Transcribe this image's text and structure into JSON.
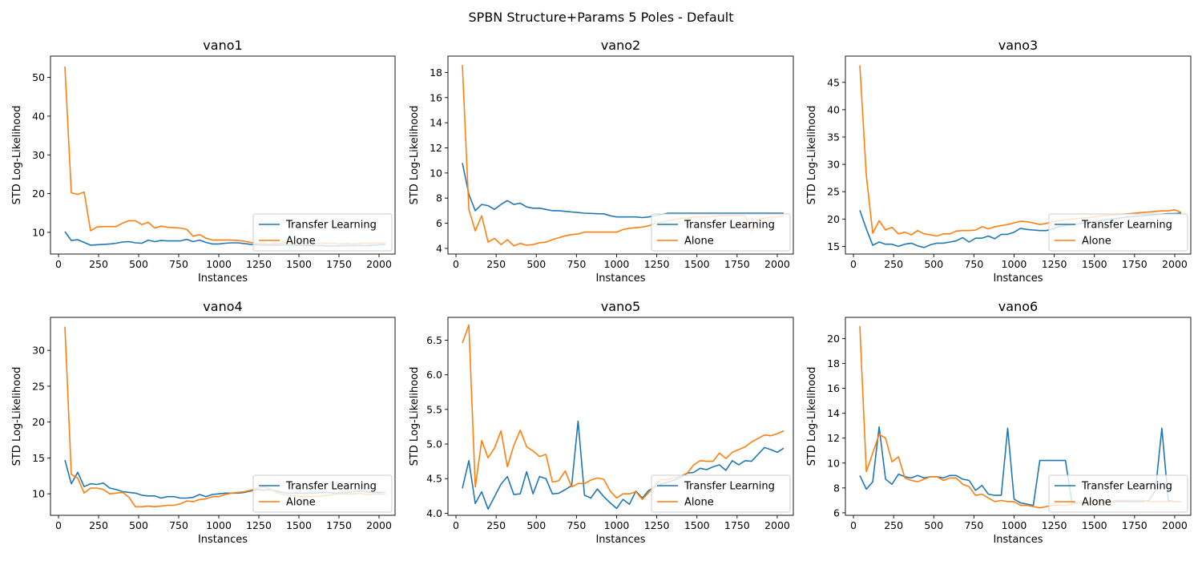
{
  "suptitle": "SPBN Structure+Params 5 Poles - Default",
  "colors": {
    "transfer": "#1f77b4",
    "alone": "#ff7f0e"
  },
  "chart_data": [
    {
      "type": "line",
      "title": "vano1",
      "xlabel": "Instances",
      "ylabel": "STD Log-Likelihood",
      "xlim": [
        -50,
        2100
      ],
      "ylim": [
        4.4,
        55.5
      ],
      "xticks": [
        0,
        250,
        500,
        750,
        1000,
        1250,
        1500,
        1750,
        2000
      ],
      "yticks": [
        10,
        20,
        30,
        40,
        50
      ],
      "legend_position": "lower-right",
      "x": [
        40,
        80,
        120,
        160,
        200,
        240,
        280,
        320,
        360,
        400,
        440,
        480,
        520,
        560,
        600,
        640,
        680,
        720,
        760,
        800,
        840,
        880,
        920,
        960,
        1000,
        1040,
        1080,
        1120,
        1160,
        1200,
        1240,
        1280,
        1320,
        1360,
        1400,
        1440,
        1480,
        1520,
        1560,
        1600,
        1640,
        1680,
        1720,
        1760,
        1800,
        1840,
        1880,
        1920,
        1960,
        2000,
        2040
      ],
      "series": [
        {
          "name": "Transfer Learning",
          "values": [
            10.2,
            7.9,
            8.1,
            7.4,
            6.7,
            6.8,
            6.9,
            7.0,
            7.2,
            7.5,
            7.6,
            7.3,
            7.2,
            8.0,
            7.6,
            7.9,
            7.8,
            7.8,
            7.8,
            8.2,
            7.6,
            8.0,
            7.4,
            7.0,
            7.0,
            7.2,
            7.3,
            7.3,
            7.1,
            6.9,
            6.8,
            6.7,
            6.7,
            6.7,
            6.8,
            6.7,
            6.7,
            6.6,
            6.6,
            6.6,
            6.6,
            6.5,
            6.5,
            6.5,
            6.6,
            6.6,
            6.6,
            6.6,
            6.7,
            6.8,
            6.9
          ]
        },
        {
          "name": "Alone",
          "values": [
            52.8,
            20.2,
            19.8,
            20.4,
            10.4,
            11.4,
            11.5,
            11.5,
            11.5,
            12.4,
            13.0,
            13.0,
            12.0,
            12.6,
            11.1,
            11.6,
            11.3,
            11.2,
            11.1,
            10.8,
            9.0,
            9.4,
            8.5,
            8.0,
            8.0,
            8.0,
            8.0,
            7.9,
            7.7,
            7.4,
            7.2,
            7.1,
            7.0,
            7.1,
            7.3,
            7.2,
            7.1,
            7.0,
            7.0,
            7.1,
            7.2,
            7.1,
            7.1,
            7.0,
            7.1,
            7.0,
            7.1,
            7.2,
            7.2,
            7.3,
            7.2
          ]
        }
      ]
    },
    {
      "type": "line",
      "title": "vano2",
      "xlabel": "Instances",
      "ylabel": "STD Log-Likelihood",
      "xlim": [
        -50,
        2100
      ],
      "ylim": [
        3.55,
        19.3
      ],
      "xticks": [
        0,
        250,
        500,
        750,
        1000,
        1250,
        1500,
        1750,
        2000
      ],
      "yticks": [
        4,
        6,
        8,
        10,
        12,
        14,
        16,
        18
      ],
      "legend_position": "lower-right",
      "x": [
        40,
        80,
        120,
        160,
        200,
        240,
        280,
        320,
        360,
        400,
        440,
        480,
        520,
        560,
        600,
        640,
        680,
        720,
        760,
        800,
        840,
        880,
        920,
        960,
        1000,
        1040,
        1080,
        1120,
        1160,
        1200,
        1240,
        1280,
        1320,
        1360,
        1400,
        1440,
        1480,
        1520,
        1560,
        1600,
        1640,
        1680,
        1720,
        1760,
        1800,
        1840,
        1880,
        1920,
        1960,
        2000,
        2040
      ],
      "series": [
        {
          "name": "Transfer Learning",
          "values": [
            10.8,
            8.3,
            7.0,
            7.5,
            7.4,
            7.1,
            7.5,
            7.8,
            7.5,
            7.6,
            7.3,
            7.2,
            7.2,
            7.1,
            7.0,
            7.0,
            6.95,
            6.9,
            6.85,
            6.8,
            6.78,
            6.76,
            6.75,
            6.6,
            6.5,
            6.5,
            6.5,
            6.5,
            6.45,
            6.5,
            6.6,
            6.7,
            6.8,
            6.8,
            6.8,
            6.8,
            6.8,
            6.8,
            6.8,
            6.8,
            6.8,
            6.8,
            6.8,
            6.8,
            6.8,
            6.8,
            6.8,
            6.8,
            6.8,
            6.8,
            6.8
          ]
        },
        {
          "name": "Alone",
          "values": [
            18.6,
            7.1,
            5.4,
            6.6,
            4.5,
            4.8,
            4.3,
            4.7,
            4.2,
            4.4,
            4.25,
            4.3,
            4.45,
            4.5,
            4.7,
            4.85,
            5.0,
            5.1,
            5.15,
            5.3,
            5.3,
            5.3,
            5.3,
            5.3,
            5.3,
            5.5,
            5.6,
            5.65,
            5.7,
            5.8,
            6.0,
            6.1,
            6.2,
            6.3,
            6.4,
            6.4,
            6.5,
            6.5,
            6.5,
            6.55,
            6.6,
            6.6,
            6.6,
            6.6,
            6.6,
            5.4,
            6.3,
            6.4,
            6.5,
            6.5,
            6.6
          ]
        }
      ]
    },
    {
      "type": "line",
      "title": "vano3",
      "xlabel": "Instances",
      "ylabel": "STD Log-Likelihood",
      "xlim": [
        -50,
        2100
      ],
      "ylim": [
        13.6,
        49.8
      ],
      "xticks": [
        0,
        250,
        500,
        750,
        1000,
        1250,
        1500,
        1750,
        2000
      ],
      "yticks": [
        15,
        20,
        25,
        30,
        35,
        40,
        45
      ],
      "legend_position": "lower-right",
      "x": [
        40,
        80,
        120,
        160,
        200,
        240,
        280,
        320,
        360,
        400,
        440,
        480,
        520,
        560,
        600,
        640,
        680,
        720,
        760,
        800,
        840,
        880,
        920,
        960,
        1000,
        1040,
        1080,
        1120,
        1160,
        1200,
        1240,
        1280,
        1320,
        1360,
        1400,
        1440,
        1480,
        1520,
        1560,
        1600,
        1640,
        1680,
        1720,
        1760,
        1800,
        1840,
        1880,
        1920,
        1960,
        2000,
        2040
      ],
      "series": [
        {
          "name": "Transfer Learning",
          "values": [
            21.6,
            18.2,
            15.2,
            15.8,
            15.4,
            15.4,
            15.0,
            15.4,
            15.6,
            15.1,
            14.8,
            15.3,
            15.6,
            15.6,
            15.8,
            16.0,
            16.6,
            15.8,
            16.5,
            16.5,
            16.9,
            16.4,
            17.2,
            17.2,
            17.6,
            18.3,
            18.1,
            18.0,
            17.9,
            17.9,
            18.2,
            18.6,
            18.8,
            19.0,
            19.1,
            19.3,
            19.5,
            19.6,
            19.8,
            20.0,
            20.1,
            20.3,
            20.4,
            20.5,
            20.6,
            20.7,
            20.8,
            20.9,
            21.0,
            21.0,
            21.1
          ]
        },
        {
          "name": "Alone",
          "values": [
            48.1,
            28.0,
            17.4,
            19.7,
            18.0,
            18.5,
            17.3,
            17.6,
            17.1,
            17.9,
            17.3,
            17.1,
            16.9,
            17.3,
            17.3,
            17.8,
            17.9,
            17.9,
            18.0,
            18.6,
            18.2,
            18.6,
            18.8,
            19.0,
            19.3,
            19.6,
            19.5,
            19.3,
            19.0,
            19.2,
            19.5,
            19.7,
            19.9,
            20.0,
            20.1,
            20.2,
            20.3,
            20.5,
            20.6,
            20.7,
            20.8,
            20.9,
            21.0,
            21.1,
            21.2,
            21.3,
            21.4,
            21.5,
            21.5,
            21.7,
            21.2
          ]
        }
      ]
    },
    {
      "type": "line",
      "title": "vano4",
      "xlabel": "Instances",
      "ylabel": "STD Log-Likelihood",
      "xlim": [
        -50,
        2100
      ],
      "ylim": [
        7.0,
        34.6
      ],
      "xticks": [
        0,
        250,
        500,
        750,
        1000,
        1250,
        1500,
        1750,
        2000
      ],
      "yticks": [
        10,
        15,
        20,
        25,
        30
      ],
      "legend_position": "lower-right",
      "x": [
        40,
        80,
        120,
        160,
        200,
        240,
        280,
        320,
        360,
        400,
        440,
        480,
        520,
        560,
        600,
        640,
        680,
        720,
        760,
        800,
        840,
        880,
        920,
        960,
        1000,
        1040,
        1080,
        1120,
        1160,
        1200,
        1240,
        1280,
        1320,
        1360,
        1400,
        1440,
        1480,
        1520,
        1560,
        1600,
        1640,
        1680,
        1720,
        1760,
        1800,
        1840,
        1880,
        1920,
        1960,
        2000,
        2040
      ],
      "series": [
        {
          "name": "Transfer Learning",
          "values": [
            14.7,
            11.4,
            13.0,
            11.0,
            11.4,
            11.3,
            11.5,
            10.8,
            10.6,
            10.3,
            10.2,
            10.1,
            9.8,
            9.7,
            9.7,
            9.4,
            9.6,
            9.6,
            9.4,
            9.4,
            9.5,
            9.9,
            9.6,
            9.9,
            10.0,
            10.1,
            10.1,
            10.1,
            10.2,
            10.4,
            10.6,
            10.5,
            10.6,
            10.4,
            10.2,
            10.1,
            10.1,
            10.1,
            10.1,
            10.1,
            10.2,
            10.2,
            10.1,
            10.1,
            10.2,
            10.3,
            10.4,
            10.3,
            10.2,
            10.2,
            10.2
          ]
        },
        {
          "name": "Alone",
          "values": [
            33.3,
            12.7,
            12.2,
            10.1,
            10.8,
            10.8,
            10.6,
            10.0,
            10.1,
            10.2,
            9.5,
            8.2,
            8.2,
            8.3,
            8.2,
            8.3,
            8.4,
            8.4,
            8.6,
            9.0,
            8.9,
            9.2,
            9.3,
            9.6,
            9.6,
            9.9,
            10.1,
            10.2,
            10.3,
            10.5,
            10.8,
            11.0,
            10.7,
            10.2,
            9.9,
            9.8,
            9.7,
            9.6,
            9.6,
            9.6,
            9.7,
            9.8,
            9.9,
            10.0,
            10.0,
            10.0,
            10.1,
            9.9,
            9.9,
            10.0,
            9.9
          ]
        }
      ]
    },
    {
      "type": "line",
      "title": "vano5",
      "xlabel": "Instances",
      "ylabel": "STD Log-Likelihood",
      "xlim": [
        -50,
        2100
      ],
      "ylim": [
        3.97,
        6.83
      ],
      "xticks": [
        0,
        250,
        500,
        750,
        1000,
        1250,
        1500,
        1750,
        2000
      ],
      "yticks": [
        4.0,
        4.5,
        5.0,
        5.5,
        6.0,
        6.5
      ],
      "yticklabels": [
        "4.0",
        "4.5",
        "5.0",
        "5.5",
        "6.0",
        "6.5"
      ],
      "legend_position": "lower-right",
      "x": [
        40,
        80,
        120,
        160,
        200,
        240,
        280,
        320,
        360,
        400,
        440,
        480,
        520,
        560,
        600,
        640,
        680,
        720,
        760,
        800,
        840,
        880,
        920,
        960,
        1000,
        1040,
        1080,
        1120,
        1160,
        1200,
        1240,
        1280,
        1320,
        1360,
        1400,
        1440,
        1480,
        1520,
        1560,
        1600,
        1640,
        1680,
        1720,
        1760,
        1800,
        1840,
        1880,
        1920,
        1960,
        2000,
        2040
      ],
      "series": [
        {
          "name": "Transfer Learning",
          "values": [
            4.36,
            4.76,
            4.14,
            4.31,
            4.06,
            4.24,
            4.42,
            4.53,
            4.27,
            4.28,
            4.6,
            4.28,
            4.53,
            4.5,
            4.28,
            4.29,
            4.34,
            4.4,
            5.33,
            4.26,
            4.22,
            4.35,
            4.24,
            4.15,
            4.07,
            4.2,
            4.13,
            4.32,
            4.22,
            4.33,
            4.38,
            4.42,
            4.45,
            4.48,
            4.52,
            4.58,
            4.59,
            4.65,
            4.63,
            4.67,
            4.7,
            4.62,
            4.76,
            4.7,
            4.76,
            4.75,
            4.85,
            4.95,
            4.92,
            4.88,
            4.94
          ]
        },
        {
          "name": "Alone",
          "values": [
            6.46,
            6.72,
            4.38,
            5.05,
            4.8,
            4.94,
            5.19,
            4.67,
            4.98,
            5.2,
            4.96,
            4.9,
            4.82,
            4.85,
            4.45,
            4.47,
            4.61,
            4.38,
            4.43,
            4.43,
            4.48,
            4.51,
            4.49,
            4.32,
            4.22,
            4.28,
            4.28,
            4.31,
            4.2,
            4.3,
            4.41,
            4.49,
            4.49,
            4.51,
            4.54,
            4.58,
            4.7,
            4.76,
            4.75,
            4.75,
            4.87,
            4.79,
            4.88,
            4.92,
            4.96,
            5.03,
            5.08,
            5.13,
            5.12,
            5.15,
            5.19
          ]
        }
      ]
    },
    {
      "type": "line",
      "title": "vano6",
      "xlabel": "Instances",
      "ylabel": "STD Log-Likelihood",
      "xlim": [
        -50,
        2100
      ],
      "ylim": [
        5.8,
        21.7
      ],
      "xticks": [
        0,
        250,
        500,
        750,
        1000,
        1250,
        1500,
        1750,
        2000
      ],
      "yticks": [
        6,
        8,
        10,
        12,
        14,
        16,
        18,
        20
      ],
      "legend_position": "lower-right",
      "x": [
        40,
        80,
        120,
        160,
        200,
        240,
        280,
        320,
        360,
        400,
        440,
        480,
        520,
        560,
        600,
        640,
        680,
        720,
        760,
        800,
        840,
        880,
        920,
        960,
        1000,
        1040,
        1080,
        1120,
        1160,
        1200,
        1240,
        1280,
        1320,
        1360,
        1400,
        1440,
        1480,
        1520,
        1560,
        1600,
        1640,
        1680,
        1720,
        1760,
        1800,
        1840,
        1880,
        1920,
        1960,
        2000,
        2040
      ],
      "series": [
        {
          "name": "Transfer Learning",
          "values": [
            9.0,
            7.9,
            8.5,
            12.9,
            8.7,
            8.3,
            9.1,
            8.9,
            8.8,
            9.0,
            8.8,
            8.9,
            8.9,
            8.8,
            9.0,
            9.0,
            8.7,
            8.6,
            7.8,
            8.2,
            7.5,
            7.4,
            7.4,
            12.8,
            7.1,
            6.8,
            6.7,
            6.6,
            10.2,
            10.2,
            10.2,
            10.2,
            10.2,
            6.8,
            6.8,
            6.8,
            6.9,
            6.9,
            6.9,
            6.9,
            6.9,
            6.9,
            6.9,
            6.9,
            6.9,
            7.0,
            7.8,
            12.8,
            7.0,
            6.9,
            6.9
          ]
        },
        {
          "name": "Alone",
          "values": [
            21.0,
            9.3,
            10.8,
            12.3,
            12.0,
            10.1,
            10.5,
            8.8,
            8.6,
            8.5,
            8.7,
            8.9,
            8.9,
            8.6,
            8.8,
            8.8,
            8.3,
            8.1,
            7.4,
            7.5,
            7.2,
            6.9,
            7.0,
            6.9,
            6.9,
            6.6,
            6.6,
            6.5,
            6.4,
            6.5,
            6.6,
            6.6,
            6.6,
            6.7,
            6.8,
            6.8,
            6.9,
            6.9,
            6.9,
            6.9,
            7.0,
            7.0,
            7.0,
            7.0,
            7.0,
            6.9,
            6.9,
            6.9,
            6.9,
            6.9,
            6.9
          ]
        }
      ]
    }
  ]
}
